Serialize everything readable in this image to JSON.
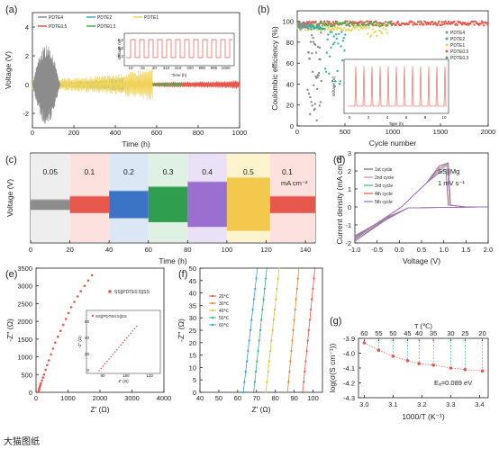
{
  "panels": {
    "a": {
      "label": "(a)",
      "ylabel": "Voltage (V)",
      "xlabel": "Time (h)",
      "legend": [
        "PDTE4",
        "PDTE2",
        "PDTE1",
        "PDTE0.5",
        "PDTE0.3"
      ],
      "inset": {
        "ylabel": "Voltage (V)",
        "xlabel": "Time (h)",
        "xticks": [
          "10",
          "15",
          "20",
          "310",
          "315",
          "320",
          "990",
          "995",
          "1000"
        ],
        "yticks": [
          "0.2",
          "0.0",
          "-0.2"
        ]
      }
    },
    "b": {
      "label": "(b)",
      "ylabel": "Coulombic efficiency (%)",
      "xlabel": "Cycle number",
      "legend": [
        "PDTE4",
        "PDTE2",
        "PDTE1",
        "PDTE0.5",
        "PDTE0.3"
      ],
      "inset": {
        "ylabel": "Voltage (V)",
        "xlabel": "Time (h)"
      }
    },
    "c": {
      "label": "(c)",
      "ylabel": "Voltage (V)",
      "xlabel": "Time (h)",
      "rates": [
        "0.05",
        "0.1",
        "0.2",
        "0.3",
        "0.4",
        "0.5",
        "0.1"
      ],
      "unit": "mA cm⁻²"
    },
    "d": {
      "label": "(d)",
      "ylabel": "Current density (mA cm⁻²)",
      "xlabel": "Voltage (V)",
      "legend": [
        "1st cycle",
        "2nd cycle",
        "3rd cycle",
        "4th cycle",
        "5th cycle"
      ],
      "annot1": "SS||Mg",
      "annot2": "1 mV s⁻¹"
    },
    "e": {
      "label": "(e)",
      "ylabel": "-Z'' (Ω)",
      "xlabel": "Z' (Ω)",
      "legend": "SS||PDTE0.5||SS",
      "inset": {
        "legend": "SS||PDTE0.5||SS",
        "ylabel": "-Z'' (Ω)",
        "xlabel": "Z' (Ω)",
        "xticks": [
          "80",
          "100",
          "120"
        ],
        "yticks": [
          "0",
          "20",
          "40",
          "60"
        ]
      }
    },
    "f": {
      "label": "(f)",
      "ylabel": "-Z'' (Ω)",
      "xlabel": "Z' (Ω)",
      "legend": [
        "20℃",
        "30℃",
        "40℃",
        "50℃",
        "60℃"
      ]
    },
    "g": {
      "label": "(g)",
      "ylabel": "log(σ(S cm⁻¹))",
      "xlabel": "1000/T (K⁻¹)",
      "toplabel": "T (℃)",
      "toptick": [
        "60",
        "55",
        "50",
        "45",
        "40",
        "35",
        "30",
        "25",
        "20"
      ],
      "ea": "Eₐ=0.089 eV"
    }
  },
  "colors": {
    "c1": "#8c8c8c",
    "c2": "#e8574b",
    "c3": "#3b74c4",
    "c4": "#2f9e4f",
    "c5": "#9a6fcf",
    "c6": "#f2c94c",
    "pdte4": "#8c8c8c",
    "pdte2": "#3bb1a7",
    "pdte1": "#f0d35a",
    "pdte05": "#e8574b",
    "pdte03": "#4caf50"
  },
  "watermark": "大猫图纸",
  "chart_data": [
    {
      "panel": "a",
      "type": "line",
      "xlabel": "Time (h)",
      "ylabel": "Voltage (V)",
      "xlim": [
        0,
        1000
      ],
      "ylim": [
        -3,
        5
      ],
      "xticks": [
        0,
        200,
        400,
        600,
        800,
        1000
      ],
      "yticks": [
        -2,
        0,
        2,
        4
      ],
      "series": [
        {
          "name": "PDTE4",
          "x_end": 140,
          "peak": 2.8
        },
        {
          "name": "PDTE2",
          "x_end": 440,
          "peak": 0.5
        },
        {
          "name": "PDTE1",
          "x_end": 580,
          "peak": 1.2
        },
        {
          "name": "PDTE0.5",
          "x_end": 1000,
          "peak": 0.1
        },
        {
          "name": "PDTE0.3",
          "x_end": 720,
          "peak": 0.15
        }
      ]
    },
    {
      "panel": "b",
      "type": "scatter",
      "xlabel": "Cycle number",
      "ylabel": "Coulombic efficiency (%)",
      "xlim": [
        0,
        2000
      ],
      "ylim": [
        0,
        110
      ],
      "xticks": [
        0,
        500,
        1000,
        1500,
        2000
      ],
      "yticks": [
        0,
        20,
        40,
        60,
        80,
        100
      ],
      "series": [
        {
          "name": "PDTE4",
          "x_end": 250,
          "level": 98
        },
        {
          "name": "PDTE2",
          "x_end": 520,
          "level": 96
        },
        {
          "name": "PDTE1",
          "x_end": 950,
          "level": 95
        },
        {
          "name": "PDTE0.5",
          "x_end": 2000,
          "level": 100
        },
        {
          "name": "PDTE0.3",
          "x_end": 1000,
          "level": 99
        }
      ]
    },
    {
      "panel": "c",
      "type": "line",
      "xlabel": "Time (h)",
      "ylabel": "Voltage (V)",
      "xlim": [
        0,
        145
      ],
      "xticks": [
        0,
        20,
        40,
        60,
        80,
        100,
        120,
        140
      ],
      "segments": [
        {
          "rate": 0.05,
          "start": 0,
          "end": 20,
          "amp": 0.12
        },
        {
          "rate": 0.1,
          "start": 20,
          "end": 40,
          "amp": 0.2
        },
        {
          "rate": 0.2,
          "start": 40,
          "end": 60,
          "amp": 0.33
        },
        {
          "rate": 0.3,
          "start": 60,
          "end": 80,
          "amp": 0.43
        },
        {
          "rate": 0.4,
          "start": 80,
          "end": 100,
          "amp": 0.55
        },
        {
          "rate": 0.5,
          "start": 100,
          "end": 122,
          "amp": 0.65
        },
        {
          "rate": 0.1,
          "start": 122,
          "end": 145,
          "amp": 0.2
        }
      ]
    },
    {
      "panel": "d",
      "type": "line",
      "xlabel": "Voltage (V)",
      "ylabel": "Current density (mA cm⁻²)",
      "xlim": [
        -1.0,
        2.0
      ],
      "ylim": [
        -2,
        3
      ],
      "xticks": [
        -1.0,
        -0.5,
        0.0,
        0.5,
        1.0,
        1.5,
        2.0
      ],
      "yticks": [
        -2,
        -1,
        0,
        1,
        2,
        3
      ],
      "cycle_peaks": [
        {
          "name": "1st cycle",
          "v": 1.05,
          "i": 2.1
        },
        {
          "name": "2nd cycle",
          "v": 1.08,
          "i": 2.3
        },
        {
          "name": "3rd cycle",
          "v": 1.1,
          "i": 2.4
        },
        {
          "name": "4th cycle",
          "v": 1.1,
          "i": 2.45
        },
        {
          "name": "5th cycle",
          "v": 1.1,
          "i": 2.45
        }
      ]
    },
    {
      "panel": "e",
      "type": "scatter",
      "xlabel": "Z' (Ω)",
      "ylabel": "-Z'' (Ω)",
      "xlim": [
        0,
        4000
      ],
      "ylim": [
        0,
        3500
      ],
      "xticks": [
        0,
        1000,
        2000,
        3000,
        4000
      ],
      "yticks": [
        0,
        500,
        1000,
        1500,
        2000,
        2500,
        3000,
        3500
      ],
      "series": [
        {
          "name": "SS||PDTE0.5||SS",
          "x": [
            80,
            100,
            150,
            250,
            400,
            600,
            850,
            1100,
            1400,
            1750
          ],
          "y": [
            10,
            100,
            250,
            500,
            900,
            1400,
            1900,
            2400,
            2850,
            3300
          ]
        }
      ]
    },
    {
      "panel": "f",
      "type": "scatter",
      "xlabel": "Z' (Ω)",
      "ylabel": "-Z'' (Ω)",
      "xlim": [
        40,
        105
      ],
      "ylim": [
        0,
        50
      ],
      "xticks": [
        40,
        50,
        60,
        70,
        80,
        90,
        100
      ],
      "yticks": [
        0,
        5,
        10,
        15,
        20,
        25,
        30,
        35,
        40,
        45,
        50
      ],
      "series": [
        {
          "name": "20℃",
          "x0": 94.5,
          "x50": 101
        },
        {
          "name": "30℃",
          "x0": 86.5,
          "x50": 92.5
        },
        {
          "name": "40℃",
          "x0": 75,
          "x50": 82
        },
        {
          "name": "50℃",
          "x0": 68.5,
          "x50": 75.5
        },
        {
          "name": "60℃",
          "x0": 63,
          "x50": 70.5
        }
      ]
    },
    {
      "panel": "g",
      "type": "scatter",
      "xlabel": "1000/T (K⁻¹)",
      "ylabel": "log(σ(S cm⁻¹))",
      "xlim": [
        3.0,
        3.42
      ],
      "ylim": [
        -4.3,
        -3.9
      ],
      "xticks": [
        3.0,
        3.1,
        3.2,
        3.3,
        3.4
      ],
      "yticks": [
        -4.3,
        -4.2,
        -4.1,
        -4.0,
        -3.9
      ],
      "x": [
        3.0,
        3.05,
        3.1,
        3.15,
        3.19,
        3.24,
        3.3,
        3.35,
        3.41
      ],
      "y": [
        -3.93,
        -3.98,
        -4.02,
        -4.05,
        -4.07,
        -4.08,
        -4.1,
        -4.11,
        -4.12
      ]
    }
  ]
}
